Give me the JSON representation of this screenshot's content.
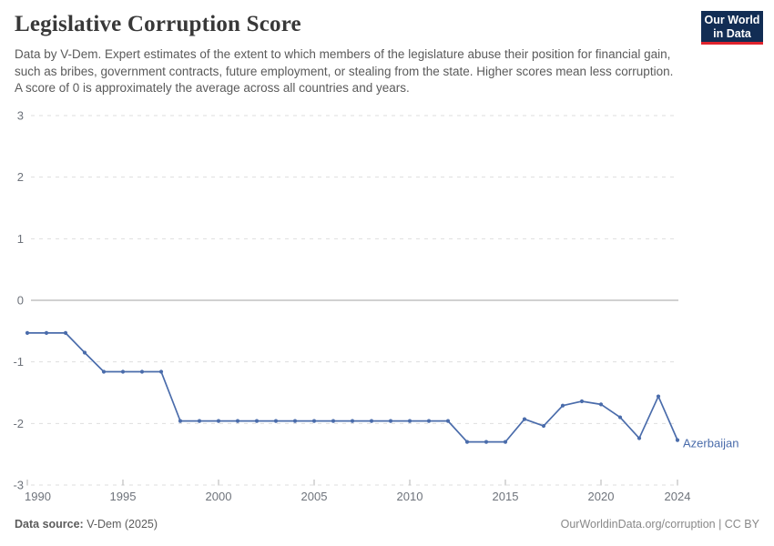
{
  "header": {
    "title": "Legislative Corruption Score",
    "subtitle": "Data by V-Dem. Expert estimates of the extent to which members of the legislature abuse their position for financial gain, such as bribes, government contracts, future employment, or stealing from the state. Higher scores mean less corruption. A score of 0 is approximately the average across all countries and years.",
    "logo": {
      "line1": "Our World",
      "line2": "in Data",
      "bg_color": "#122d54",
      "accent_color": "#e0232d"
    }
  },
  "chart_data": {
    "type": "line",
    "title": "Legislative Corruption Score",
    "x": [
      1990,
      1991,
      1992,
      1993,
      1994,
      1995,
      1996,
      1997,
      1998,
      1999,
      2000,
      2001,
      2002,
      2003,
      2004,
      2005,
      2006,
      2007,
      2008,
      2009,
      2010,
      2011,
      2012,
      2013,
      2014,
      2015,
      2016,
      2017,
      2018,
      2019,
      2020,
      2021,
      2022,
      2023,
      2024
    ],
    "series": [
      {
        "name": "Azerbaijan",
        "color": "#4a6cab",
        "values": [
          -0.53,
          -0.53,
          -0.53,
          -0.85,
          -1.16,
          -1.16,
          -1.16,
          -1.16,
          -1.96,
          -1.96,
          -1.96,
          -1.96,
          -1.96,
          -1.96,
          -1.96,
          -1.96,
          -1.96,
          -1.96,
          -1.96,
          -1.96,
          -1.96,
          -1.96,
          -1.96,
          -2.3,
          -2.3,
          -2.3,
          -1.93,
          -2.04,
          -1.71,
          -1.64,
          -1.69,
          -1.9,
          -2.24,
          -1.56,
          -2.27
        ]
      }
    ],
    "ylim": [
      -3,
      3
    ],
    "yticks": [
      3,
      2,
      1,
      0,
      -1,
      -2,
      -3
    ],
    "xticks": [
      1990,
      1995,
      2000,
      2005,
      2010,
      2015,
      2020,
      2024
    ],
    "grid": "horizontal-dashed",
    "zero_line": true,
    "legend_position": "end-of-line-label",
    "colors": {
      "gridline": "#dedede",
      "zero_line": "#a3a3a3",
      "tick_label": "#6e737b",
      "tick_mark": "#b3b3b3"
    }
  },
  "footer": {
    "source_label": "Data source:",
    "source_value": " V-Dem (2025)",
    "link": "OurWorldinData.org/corruption | CC BY"
  }
}
